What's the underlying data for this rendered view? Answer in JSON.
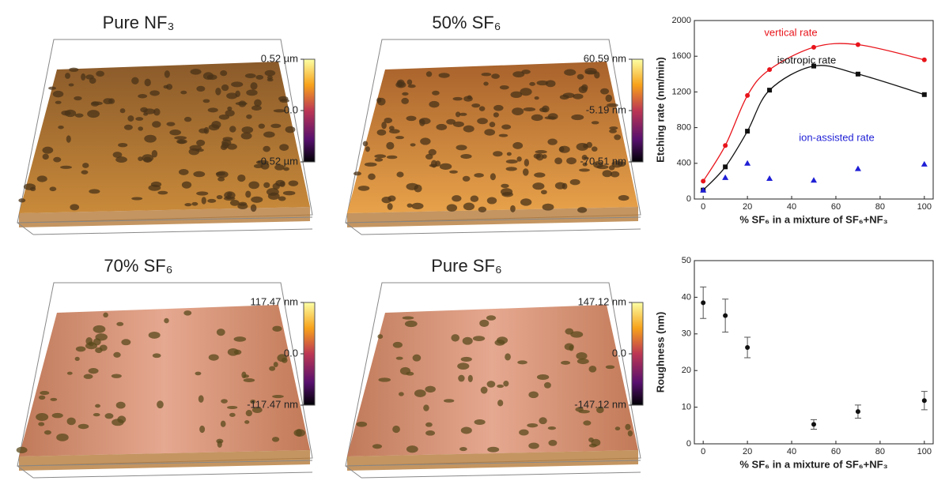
{
  "panels": [
    {
      "title": "Pure NF₃",
      "colorbar": [
        "0.52 µm",
        "0.0",
        "-0.52 µm"
      ]
    },
    {
      "title": "50% SF₆",
      "colorbar": [
        "60.59 nm",
        "-5.19 nm",
        "-70.51 nm"
      ]
    },
    {
      "title": "70% SF₆",
      "colorbar": [
        "117.47 nm",
        "0.0",
        "-117.47 nm"
      ]
    },
    {
      "title": "Pure SF₆",
      "colorbar": [
        "147.12 nm",
        "0.0",
        "-147.12 nm"
      ]
    }
  ],
  "chart_data": [
    {
      "type": "line",
      "y_label": "Etching rate (nm/min)",
      "x_label": "% SF₆ in a mixture of SF₆+NF₃",
      "x": [
        0,
        10,
        20,
        30,
        50,
        70,
        100
      ],
      "series": [
        {
          "name": "vertical rate",
          "color": "#e8141b",
          "marker": "circle",
          "line": true,
          "values": [
            200,
            600,
            1160,
            1450,
            1700,
            1730,
            1560
          ]
        },
        {
          "name": "isotropic rate",
          "color": "#111111",
          "marker": "square",
          "line": true,
          "values": [
            100,
            360,
            760,
            1220,
            1490,
            1400,
            1170
          ]
        },
        {
          "name": "ion-assisted rate",
          "color": "#1f1fd6",
          "marker": "triangle",
          "line": false,
          "values": [
            100,
            240,
            400,
            230,
            210,
            340,
            390
          ]
        }
      ],
      "xlim": [
        -4,
        104
      ],
      "xticks": [
        0,
        20,
        40,
        60,
        80,
        100
      ],
      "ylim": [
        0,
        2000
      ],
      "yticks": [
        0,
        400,
        800,
        1200,
        1600,
        2000
      ]
    },
    {
      "type": "scatter",
      "y_label": "Roughness (nm)",
      "x_label": "% SF₆ in a mixture of SF₆+NF₃",
      "x": [
        0,
        10,
        20,
        50,
        70,
        100
      ],
      "values": [
        38.5,
        35,
        26.3,
        5.3,
        8.8,
        11.8
      ],
      "errors": [
        4.3,
        4.5,
        2.8,
        1.3,
        1.8,
        2.5
      ],
      "color": "#111111",
      "xlim": [
        -4,
        104
      ],
      "xticks": [
        0,
        20,
        40,
        60,
        80,
        100
      ],
      "ylim": [
        0,
        50
      ],
      "yticks": [
        0,
        10,
        20,
        30,
        40,
        50
      ]
    }
  ]
}
